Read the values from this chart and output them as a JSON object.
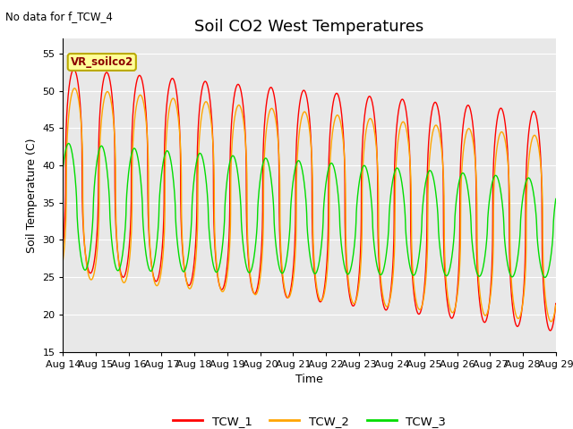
{
  "title": "Soil CO2 West Temperatures",
  "xlabel": "Time",
  "ylabel": "Soil Temperature (C)",
  "no_data_label": "No data for f_TCW_4",
  "annotation_label": "VR_soilco2",
  "ylim": [
    15,
    57
  ],
  "yticks": [
    15,
    20,
    25,
    30,
    35,
    40,
    45,
    50,
    55
  ],
  "xtick_labels": [
    "Aug 14",
    "Aug 15",
    "Aug 16",
    "Aug 17",
    "Aug 18",
    "Aug 19",
    "Aug 20",
    "Aug 21",
    "Aug 22",
    "Aug 23",
    "Aug 24",
    "Aug 25",
    "Aug 26",
    "Aug 27",
    "Aug 28",
    "Aug 29"
  ],
  "legend_entries": [
    "TCW_1",
    "TCW_2",
    "TCW_3"
  ],
  "line_colors": [
    "#ff0000",
    "#ffa500",
    "#00dd00"
  ],
  "background_color": "#e8e8e8",
  "title_fontsize": 13,
  "label_fontsize": 9,
  "tick_fontsize": 8,
  "figsize": [
    6.4,
    4.8
  ],
  "dpi": 100
}
